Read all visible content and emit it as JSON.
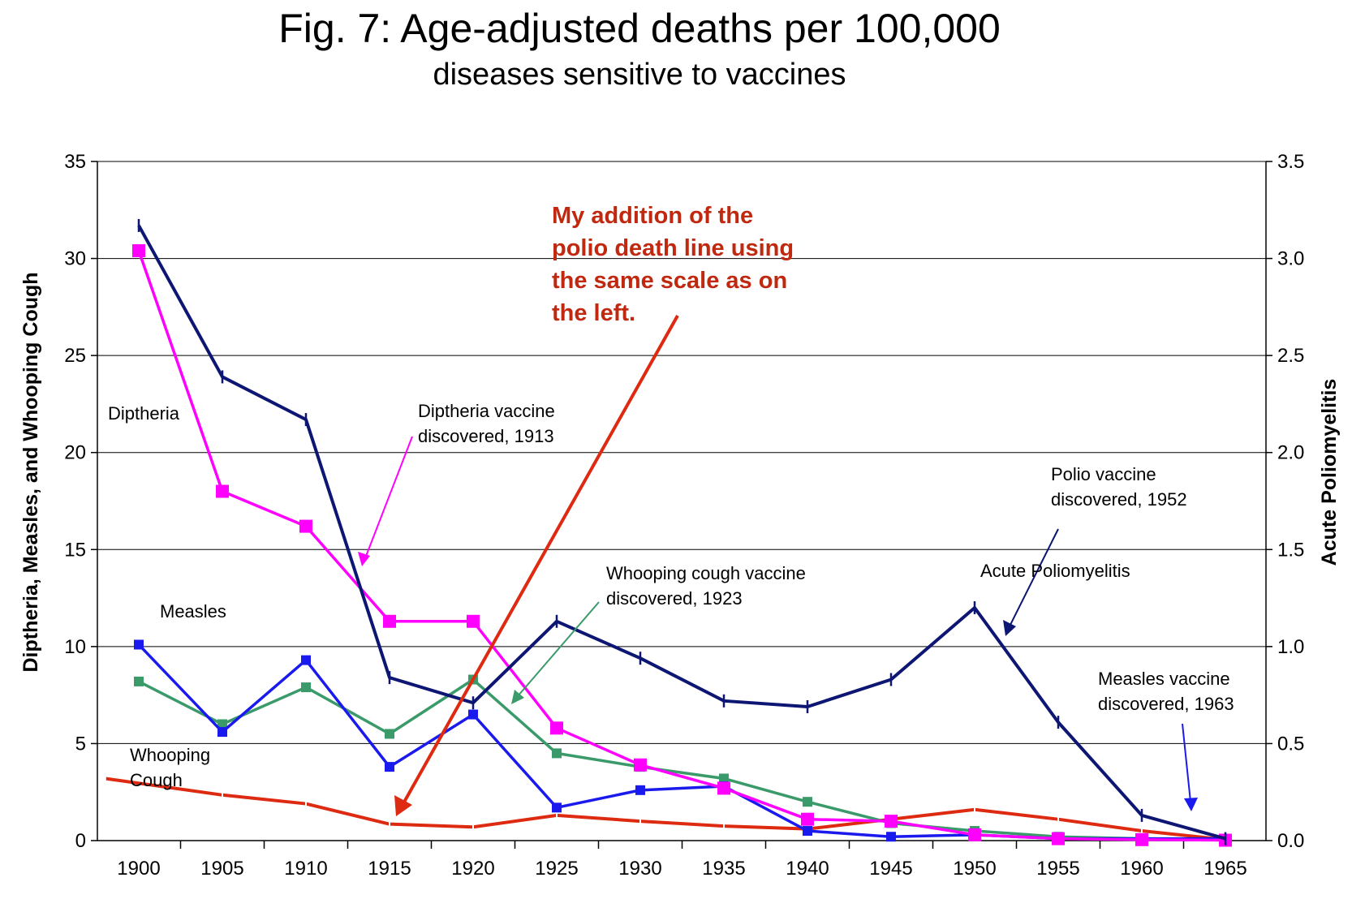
{
  "chart_data": {
    "type": "line",
    "title": "Fig. 7: Age-adjusted deaths per 100,000",
    "subtitle": "diseases sensitive to vaccines",
    "ylabel_left": "Diptheria, Measles, and Whooping Cough",
    "ylabel_right": "Acute Poliomyelitis",
    "ylim_left": [
      0,
      35
    ],
    "ylim_right": [
      0,
      3.5
    ],
    "yticks_left": [
      "0",
      "5",
      "10",
      "15",
      "20",
      "25",
      "30",
      "35"
    ],
    "yticks_right": [
      "0.0",
      "0.5",
      "1.0",
      "1.5",
      "2.0",
      "2.5",
      "3.0",
      "3.5"
    ],
    "grid": true,
    "categories": [
      "1900",
      "1905",
      "1910",
      "1915",
      "1920",
      "1925",
      "1930",
      "1935",
      "1940",
      "1945",
      "1950",
      "1955",
      "1960",
      "1965"
    ],
    "series": [
      {
        "name": "Diptheria",
        "axis": "left",
        "color": "#ff00ff",
        "marker": "square-large",
        "values": [
          30.4,
          18.0,
          16.2,
          11.3,
          11.3,
          5.8,
          3.9,
          2.7,
          1.1,
          1.0,
          0.3,
          0.1,
          0.05,
          0.02
        ]
      },
      {
        "name": "Measles",
        "axis": "left",
        "color": "#1a1aee",
        "marker": "square",
        "values": [
          10.1,
          5.6,
          9.3,
          3.8,
          6.5,
          1.7,
          2.6,
          2.8,
          0.5,
          0.2,
          0.3,
          0.1,
          0.1,
          0.1
        ]
      },
      {
        "name": "Whooping Cough",
        "axis": "left",
        "color": "#3a9a6a",
        "marker": "square",
        "values": [
          8.2,
          6.0,
          7.9,
          5.5,
          8.3,
          4.5,
          3.8,
          3.2,
          2.0,
          0.9,
          0.5,
          0.2,
          0.1,
          0.05
        ]
      },
      {
        "name": "Acute Poliomyelitis",
        "axis": "right",
        "color": "#0d1673",
        "marker": "tick",
        "values": [
          3.17,
          2.39,
          2.17,
          0.84,
          0.71,
          1.13,
          0.94,
          0.72,
          0.69,
          0.83,
          1.2,
          0.61,
          0.13,
          0.01
        ]
      },
      {
        "name": "polio (left scale)",
        "axis": "left",
        "color": "#dd2a10",
        "marker": "none",
        "x_start": 1898,
        "x": [
          1898,
          1905,
          1910,
          1915,
          1920,
          1925,
          1930,
          1935,
          1940,
          1945,
          1950,
          1955,
          1960,
          1965
        ],
        "values": [
          3.2,
          2.35,
          1.9,
          0.85,
          0.7,
          1.3,
          1.0,
          0.75,
          0.6,
          1.1,
          1.6,
          1.1,
          0.5,
          0.05
        ]
      }
    ],
    "annotations": {
      "diptheria_label": "Diptheria",
      "measles_label": "Measles",
      "whooping_label_1": "Whooping",
      "whooping_label_2": "Cough",
      "polio_label": "Acute Poliomyelitis",
      "dip_vaccine_1": "Diptheria vaccine",
      "dip_vaccine_2": "discovered, 1913",
      "whoop_vaccine_1": "Whooping cough vaccine",
      "whoop_vaccine_2": "discovered, 1923",
      "polio_vaccine_1": "Polio vaccine",
      "polio_vaccine_2": "discovered, 1952",
      "measles_vaccine_1": "Measles vaccine",
      "measles_vaccine_2": "discovered, 1963",
      "note_1": "My addition of the",
      "note_2": "polio death line using",
      "note_3": "the same scale as on",
      "note_4": "the left."
    }
  }
}
